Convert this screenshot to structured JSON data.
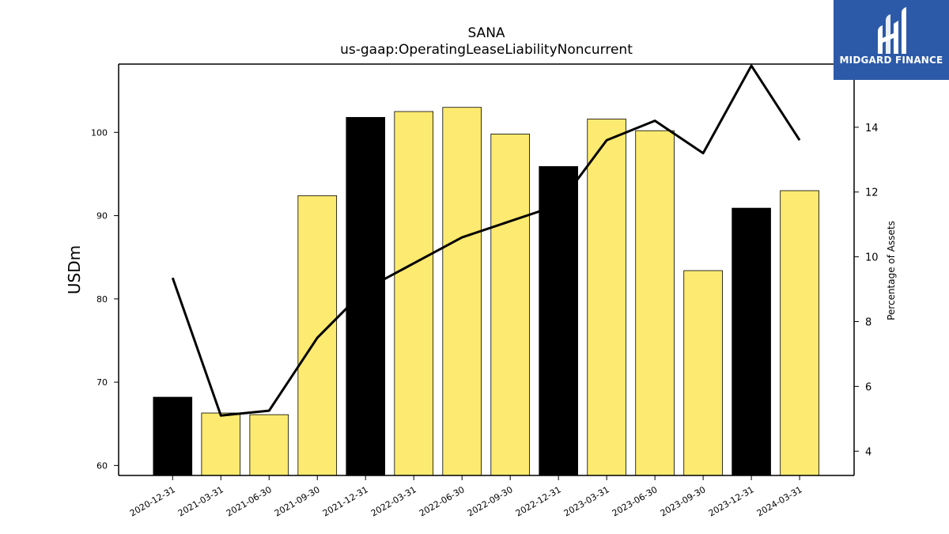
{
  "title": "SANA",
  "subtitle": "us-gaap:OperatingLeaseLiabilityNoncurrent",
  "logo": {
    "text": "MIDGARD FINANCE"
  },
  "colors": {
    "highlight": "#000000",
    "normal": "#fdea70",
    "line": "#000000",
    "logo_bg": "#2d5aa8"
  },
  "chart_data": {
    "type": "bar",
    "title": "SANA",
    "subtitle": "us-gaap:OperatingLeaseLiabilityNoncurrent",
    "ylabel": "USDm",
    "y2label": "Percentage of Assets",
    "categories": [
      "2020-12-31",
      "2021-03-31",
      "2021-06-30",
      "2021-09-30",
      "2021-12-31",
      "2022-03-31",
      "2022-06-30",
      "2022-09-30",
      "2022-12-31",
      "2023-03-31",
      "2023-06-30",
      "2023-09-30",
      "2023-12-31",
      "2024-03-31"
    ],
    "series": [
      {
        "type": "bar",
        "values": [
          68.2,
          66.3,
          66.1,
          92.4,
          101.8,
          102.5,
          103.0,
          99.8,
          95.9,
          101.6,
          100.2,
          83.4,
          90.9,
          93.0
        ],
        "highlight": [
          true,
          false,
          false,
          false,
          true,
          false,
          false,
          false,
          true,
          false,
          false,
          false,
          true,
          false
        ]
      },
      {
        "type": "line",
        "axis": "right",
        "values": [
          9.35,
          5.1,
          5.25,
          7.5,
          9.0,
          9.8,
          10.6,
          11.1,
          11.6,
          13.6,
          14.2,
          13.2,
          15.9,
          13.6
        ]
      }
    ],
    "ylim": [
      58.8,
      108.2
    ],
    "y2lim": [
      3.25,
      15.95
    ],
    "yticks": [
      60,
      70,
      80,
      90,
      100
    ],
    "y2ticks": [
      4,
      6,
      8,
      10,
      12,
      14
    ],
    "grid": false
  }
}
